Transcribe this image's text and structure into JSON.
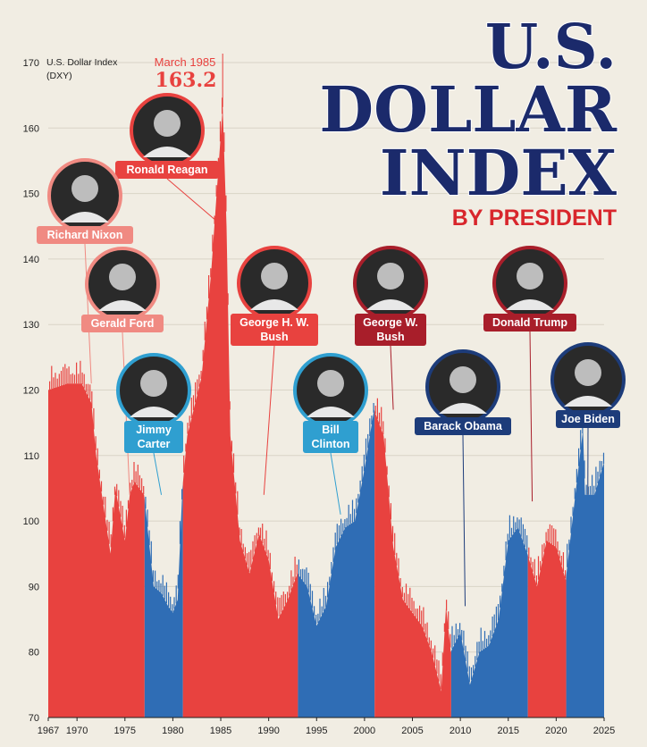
{
  "title": {
    "line1": "U.S.",
    "line2": "DOLLAR",
    "line3": "INDEX",
    "subtitle": "BY PRESIDENT"
  },
  "colors": {
    "republican": "#e8423f",
    "democrat": "#2f6db5",
    "republican_dark": "#a81e2a",
    "democrat_dark": "#1d3c7a",
    "title_navy": "#1b2a6b",
    "subtitle_red": "#d8262c",
    "background": "#f1ede3"
  },
  "peak": {
    "date_label": "March 1985",
    "value_label": "163.2"
  },
  "chart_data": {
    "type": "area",
    "ylabel": "U.S. Dollar Index",
    "ylabel_unit": "(DXY)",
    "xlim": [
      1967,
      2025
    ],
    "ylim": [
      70,
      170
    ],
    "yticks": [
      70,
      80,
      90,
      100,
      110,
      120,
      130,
      140,
      150,
      160,
      170
    ],
    "xticks": [
      1967,
      1970,
      1975,
      1980,
      1985,
      1990,
      1995,
      2000,
      2005,
      2010,
      2015,
      2020,
      2025
    ],
    "series": [
      {
        "name": "U.S. Dollar Index",
        "x": [
          1967,
          1969,
          1970.5,
          1971.5,
          1972,
          1973,
          1973.5,
          1974,
          1975,
          1975.5,
          1976,
          1977,
          1978,
          1978.8,
          1979.5,
          1980,
          1980.5,
          1981,
          1981.5,
          1982,
          1983,
          1984,
          1985.2,
          1985.6,
          1986,
          1987,
          1988,
          1989,
          1990,
          1991,
          1992,
          1993,
          1994,
          1995,
          1996,
          1997,
          1998,
          1999,
          2000,
          2001,
          2002,
          2003,
          2004,
          2005,
          2006,
          2007,
          2008,
          2008.5,
          2009,
          2010,
          2011,
          2012,
          2013,
          2014,
          2015,
          2016,
          2017,
          2018,
          2019,
          2020,
          2021,
          2022,
          2022.8,
          2023,
          2024,
          2025
        ],
        "y": [
          120,
          121,
          121,
          118,
          110,
          100,
          95,
          105,
          97,
          104,
          106,
          104,
          90,
          89,
          87,
          86,
          88,
          105,
          113,
          116,
          122,
          138,
          163.2,
          145,
          113,
          97,
          92,
          98,
          94,
          85,
          88,
          92,
          90,
          84,
          87,
          96,
          99,
          100,
          108,
          117,
          113,
          96,
          88,
          86,
          84,
          80,
          74,
          87,
          80,
          83,
          75,
          80,
          81,
          85,
          97,
          99,
          95,
          90,
          97,
          96,
          91,
          104,
          114,
          104,
          104,
          109
        ]
      }
    ],
    "terms": [
      {
        "president": "Richard Nixon",
        "start": 1967,
        "end": 1974.6,
        "party": "republican"
      },
      {
        "president": "Gerald Ford",
        "start": 1974.6,
        "end": 1977.05,
        "party": "republican"
      },
      {
        "president": "Jimmy Carter",
        "start": 1977.05,
        "end": 1981.05,
        "party": "democrat"
      },
      {
        "president": "Ronald Reagan",
        "start": 1981.05,
        "end": 1989.05,
        "party": "republican"
      },
      {
        "president": "George H. W. Bush",
        "start": 1989.05,
        "end": 1993.05,
        "party": "republican"
      },
      {
        "president": "Bill Clinton",
        "start": 1993.05,
        "end": 2001.05,
        "party": "democrat"
      },
      {
        "president": "George W. Bush",
        "start": 2001.05,
        "end": 2009.05,
        "party": "republican"
      },
      {
        "president": "Barack Obama",
        "start": 2009.05,
        "end": 2017.05,
        "party": "democrat"
      },
      {
        "president": "Donald Trump",
        "start": 2017.05,
        "end": 2021.05,
        "party": "republican"
      },
      {
        "president": "Joe Biden",
        "start": 2021.05,
        "end": 2025,
        "party": "democrat"
      }
    ],
    "labels": [
      {
        "id": "reagan",
        "lines": [
          "Ronald Reagan"
        ],
        "party": "republican",
        "dark": false,
        "anchor_x": 1985.2,
        "anchor_y": 145
      },
      {
        "id": "nixon",
        "lines": [
          "Richard Nixon"
        ],
        "party": "republican",
        "dark": false,
        "anchor_x": 1971.5,
        "anchor_y": 121
      },
      {
        "id": "ford",
        "lines": [
          "Gerald Ford"
        ],
        "party": "republican",
        "dark": false,
        "anchor_x": 1975.5,
        "anchor_y": 104
      },
      {
        "id": "carter",
        "lines": [
          "Jimmy",
          "Carter"
        ],
        "party": "democrat",
        "dark": false,
        "anchor_x": 1978.8,
        "anchor_y": 104
      },
      {
        "id": "bush_hw",
        "lines": [
          "George H. W.",
          "Bush"
        ],
        "party": "republican",
        "dark": false,
        "anchor_x": 1989.5,
        "anchor_y": 104
      },
      {
        "id": "clinton",
        "lines": [
          "Bill",
          "Clinton"
        ],
        "party": "democrat",
        "dark": false,
        "anchor_x": 1997.5,
        "anchor_y": 101
      },
      {
        "id": "bush_w",
        "lines": [
          "George W.",
          "Bush"
        ],
        "party": "republican",
        "dark": true,
        "anchor_x": 2003,
        "anchor_y": 117
      },
      {
        "id": "obama",
        "lines": [
          "Barack Obama"
        ],
        "party": "democrat",
        "dark": true,
        "anchor_x": 2010.5,
        "anchor_y": 87
      },
      {
        "id": "trump",
        "lines": [
          "Donald Trump"
        ],
        "party": "republican",
        "dark": true,
        "anchor_x": 2017.5,
        "anchor_y": 103
      },
      {
        "id": "biden",
        "lines": [
          "Joe Biden"
        ],
        "party": "democrat",
        "dark": true,
        "anchor_x": 2023.3,
        "anchor_y": 104
      }
    ]
  }
}
